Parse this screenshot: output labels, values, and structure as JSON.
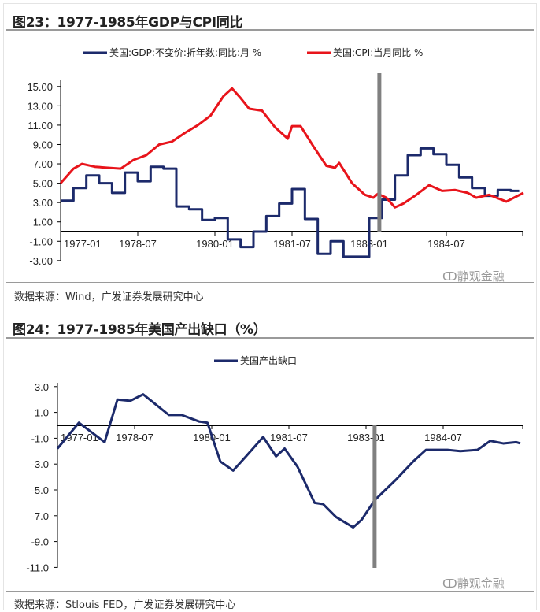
{
  "figures": [
    {
      "title": "图23：1977-1985年GDP与CPI同比",
      "source": "数据来源：Wind，广发证券发展研究中心",
      "watermark": "静观金融"
    },
    {
      "title": "图24：1977-1985年美国产出缺口（%）",
      "source": "数据来源：Stlouis FED，广发证券发展研究中心",
      "watermark": "静观金融"
    }
  ],
  "chart_data": [
    {
      "type": "line",
      "title": "图23：1977-1985年GDP与CPI同比",
      "x_ticks": [
        "1977-01",
        "1978-07",
        "1980-01",
        "1981-07",
        "1983-01",
        "1984-07"
      ],
      "y_ticks": [
        "15.00",
        "13.00",
        "11.00",
        "9.00",
        "7.00",
        "5.00",
        "3.00",
        "1.00",
        "-1.00",
        "-3.00"
      ],
      "ylim": [
        -3,
        16
      ],
      "xlim": [
        "1977-01",
        "1986-01"
      ],
      "grid": false,
      "legend": "top",
      "vertical_marker": "1983-03",
      "marker_color": "#808080",
      "series": [
        {
          "name": "美国:GDP:不变价:折年数:同比:月 %",
          "color": "#1c2a6b",
          "step": true,
          "x": [
            "1977-01",
            "1977-04",
            "1977-07",
            "1977-10",
            "1978-01",
            "1978-04",
            "1978-07",
            "1978-10",
            "1979-01",
            "1979-04",
            "1979-07",
            "1979-10",
            "1980-01",
            "1980-04",
            "1980-07",
            "1980-10",
            "1981-01",
            "1981-04",
            "1981-07",
            "1981-10",
            "1982-01",
            "1982-04",
            "1982-07",
            "1982-10",
            "1983-01",
            "1983-04",
            "1983-07",
            "1983-10",
            "1984-01",
            "1984-04",
            "1984-07",
            "1984-10",
            "1985-01",
            "1985-04",
            "1985-07",
            "1985-10",
            "1985-12"
          ],
          "values": [
            3.2,
            4.5,
            5.8,
            5.0,
            4.0,
            6.1,
            5.2,
            6.7,
            6.5,
            2.6,
            2.3,
            1.2,
            1.4,
            -0.8,
            -1.6,
            0.0,
            1.6,
            2.9,
            4.4,
            1.3,
            -2.3,
            -1.0,
            -2.6,
            -2.6,
            1.4,
            3.3,
            5.8,
            7.9,
            8.6,
            8.0,
            6.9,
            5.6,
            4.5,
            3.7,
            4.3,
            4.2,
            4.2
          ]
        },
        {
          "name": "美国:CPI:当月同比 %",
          "color": "#e8141b",
          "step": false,
          "x": [
            "1977-01",
            "1977-04",
            "1977-06",
            "1977-09",
            "1977-12",
            "1978-03",
            "1978-06",
            "1978-09",
            "1978-12",
            "1979-03",
            "1979-06",
            "1979-09",
            "1979-12",
            "1980-03",
            "1980-05",
            "1980-07",
            "1980-09",
            "1980-12",
            "1981-03",
            "1981-06",
            "1981-07",
            "1981-09",
            "1981-12",
            "1982-03",
            "1982-05",
            "1982-06",
            "1982-09",
            "1982-12",
            "1983-02",
            "1983-03",
            "1983-05",
            "1983-07",
            "1983-09",
            "1983-12",
            "1984-03",
            "1984-06",
            "1984-09",
            "1984-12",
            "1985-02",
            "1985-05",
            "1985-09",
            "1986-01"
          ],
          "values": [
            5.0,
            6.5,
            7.0,
            6.7,
            6.6,
            6.5,
            7.4,
            7.9,
            9.0,
            9.3,
            10.2,
            11.0,
            12.0,
            14.0,
            14.8,
            13.8,
            12.7,
            12.5,
            10.8,
            9.6,
            10.9,
            10.9,
            8.8,
            6.8,
            6.6,
            7.1,
            5.0,
            3.8,
            3.5,
            3.9,
            3.5,
            2.5,
            2.9,
            3.8,
            4.8,
            4.2,
            4.3,
            4.0,
            3.5,
            3.8,
            3.1,
            4.0
          ]
        }
      ]
    },
    {
      "type": "line",
      "title": "图24：1977-1985年美国产出缺口（%）",
      "x_ticks": [
        "1977-01",
        "1978-07",
        "1980-01",
        "1981-07",
        "1983-01",
        "1984-07"
      ],
      "y_ticks": [
        "3.0",
        "1.0",
        "-1.0",
        "-3.0",
        "-5.0",
        "-7.0",
        "-9.0",
        "-11.0"
      ],
      "ylim": [
        -11,
        3
      ],
      "xlim": [
        "1977-01",
        "1986-01"
      ],
      "grid": false,
      "legend": "top",
      "vertical_marker": "1983-03",
      "marker_color": "#808080",
      "series": [
        {
          "name": "美国产出缺口",
          "color": "#1c2a6b",
          "step": false,
          "x": [
            "1977-01",
            "1977-06",
            "1977-12",
            "1978-03",
            "1978-06",
            "1978-09",
            "1979-03",
            "1979-06",
            "1979-10",
            "1979-12",
            "1980-03",
            "1980-06",
            "1980-09",
            "1981-01",
            "1981-04",
            "1981-06",
            "1981-09",
            "1982-01",
            "1982-03",
            "1982-06",
            "1982-10",
            "1982-12",
            "1983-03",
            "1983-08",
            "1983-12",
            "1984-03",
            "1984-08",
            "1984-11",
            "1985-03",
            "1985-06",
            "1985-09",
            "1985-12",
            "1986-01"
          ],
          "values": [
            -1.8,
            0.2,
            -1.3,
            2.0,
            1.9,
            2.4,
            0.8,
            0.8,
            0.3,
            0.2,
            -2.8,
            -3.5,
            -2.4,
            -0.9,
            -2.4,
            -1.8,
            -3.2,
            -6.0,
            -6.1,
            -7.1,
            -7.9,
            -7.3,
            -5.8,
            -4.2,
            -2.8,
            -1.9,
            -1.9,
            -2.0,
            -1.9,
            -1.2,
            -1.4,
            -1.3,
            -1.4
          ]
        }
      ]
    }
  ]
}
